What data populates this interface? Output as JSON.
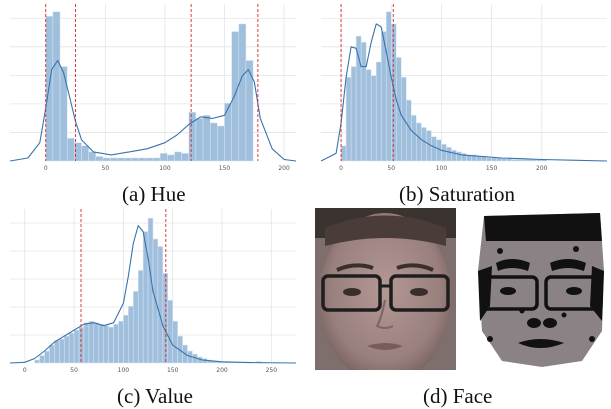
{
  "chart_data": [
    {
      "type": "bar",
      "caption": "(a) Hue",
      "xlim": [
        -30,
        210
      ],
      "xticks": [
        0,
        50,
        100,
        150,
        200
      ],
      "grid": true,
      "bin_width": 6,
      "bins_start": 0,
      "values": [
        0.95,
        0.98,
        0.62,
        0.15,
        0.12,
        0.1,
        0.06,
        0.03,
        0.02,
        0.02,
        0.02,
        0.02,
        0.02,
        0.02,
        0.02,
        0.02,
        0.05,
        0.04,
        0.06,
        0.05,
        0.32,
        0.28,
        0.3,
        0.25,
        0.23,
        0.38,
        0.85,
        0.9,
        0.66
      ],
      "kde_x": [
        -30,
        -15,
        -5,
        0,
        5,
        10,
        15,
        20,
        25,
        30,
        40,
        55,
        70,
        85,
        100,
        110,
        120,
        130,
        140,
        150,
        158,
        165,
        170,
        175,
        180,
        190,
        200,
        210
      ],
      "kde_y": [
        0.0,
        0.02,
        0.12,
        0.35,
        0.6,
        0.66,
        0.58,
        0.42,
        0.26,
        0.14,
        0.06,
        0.04,
        0.06,
        0.08,
        0.12,
        0.17,
        0.24,
        0.29,
        0.28,
        0.3,
        0.42,
        0.56,
        0.6,
        0.52,
        0.28,
        0.08,
        0.01,
        0.0
      ],
      "ymax": 1.0,
      "vlines": [
        0,
        25,
        122,
        178
      ]
    },
    {
      "type": "bar",
      "caption": "(b) Saturation",
      "xlim": [
        -20,
        265
      ],
      "xticks": [
        0,
        50,
        100,
        150,
        200
      ],
      "grid": true,
      "bin_width": 5,
      "bins_start": 0,
      "values": [
        0.1,
        0.55,
        0.62,
        0.82,
        0.78,
        0.6,
        0.56,
        0.65,
        0.85,
        0.98,
        0.9,
        0.68,
        0.55,
        0.4,
        0.3,
        0.25,
        0.22,
        0.2,
        0.16,
        0.14,
        0.11,
        0.09,
        0.07,
        0.06,
        0.05,
        0.04,
        0.04,
        0.03,
        0.03,
        0.02,
        0.02,
        0.02,
        0.015,
        0.015,
        0.01,
        0.01,
        0.01,
        0.01,
        0.01,
        0.01,
        0.01
      ],
      "kde_x": [
        -20,
        -5,
        0,
        5,
        10,
        15,
        20,
        25,
        30,
        35,
        40,
        45,
        50,
        55,
        60,
        70,
        80,
        90,
        100,
        120,
        140,
        160,
        180,
        200,
        230,
        265
      ],
      "kde_y": [
        0.0,
        0.05,
        0.25,
        0.55,
        0.75,
        0.74,
        0.62,
        0.62,
        0.78,
        0.9,
        0.88,
        0.72,
        0.55,
        0.4,
        0.3,
        0.2,
        0.14,
        0.1,
        0.07,
        0.04,
        0.03,
        0.02,
        0.015,
        0.01,
        0.005,
        0.0
      ],
      "ymax": 1.0,
      "vlines": [
        0,
        52
      ]
    },
    {
      "type": "bar",
      "caption": "(c) Value",
      "xlim": [
        -15,
        275
      ],
      "xticks": [
        0,
        50,
        100,
        150,
        200,
        250
      ],
      "grid": true,
      "bin_width": 5,
      "bins_start": 10,
      "values": [
        0.02,
        0.05,
        0.08,
        0.12,
        0.15,
        0.16,
        0.18,
        0.2,
        0.22,
        0.24,
        0.27,
        0.28,
        0.27,
        0.26,
        0.25,
        0.24,
        0.26,
        0.28,
        0.32,
        0.38,
        0.48,
        0.62,
        0.88,
        0.97,
        0.83,
        0.78,
        0.6,
        0.42,
        0.28,
        0.18,
        0.12,
        0.08,
        0.06,
        0.04,
        0.03,
        0.02,
        0.015,
        0.01,
        0.01,
        0.008,
        0.005,
        0.005,
        0.005,
        0.005,
        0.005,
        0.01,
        0.005
      ],
      "kde_x": [
        -15,
        0,
        10,
        20,
        30,
        40,
        50,
        60,
        70,
        80,
        90,
        100,
        105,
        110,
        115,
        120,
        125,
        130,
        140,
        150,
        165,
        180,
        200,
        230,
        275
      ],
      "kde_y": [
        0.0,
        0.005,
        0.03,
        0.08,
        0.14,
        0.18,
        0.22,
        0.26,
        0.27,
        0.25,
        0.27,
        0.4,
        0.58,
        0.8,
        0.92,
        0.88,
        0.7,
        0.48,
        0.25,
        0.12,
        0.05,
        0.02,
        0.008,
        0.003,
        0.0
      ],
      "ymax": 1.0,
      "vlines": [
        57,
        143
      ]
    }
  ],
  "face_panel": {
    "caption": "(d) Face",
    "skin_color": "#a48a86",
    "glasses_color": "#1e1e1e"
  },
  "colors": {
    "bar": "#9fbfdc",
    "bar_edge": "#d9e7f3",
    "kde": "#3a73ad",
    "vline": "#d62728",
    "grid": "#e4e4e9",
    "axes_bg": "#ffffff"
  }
}
